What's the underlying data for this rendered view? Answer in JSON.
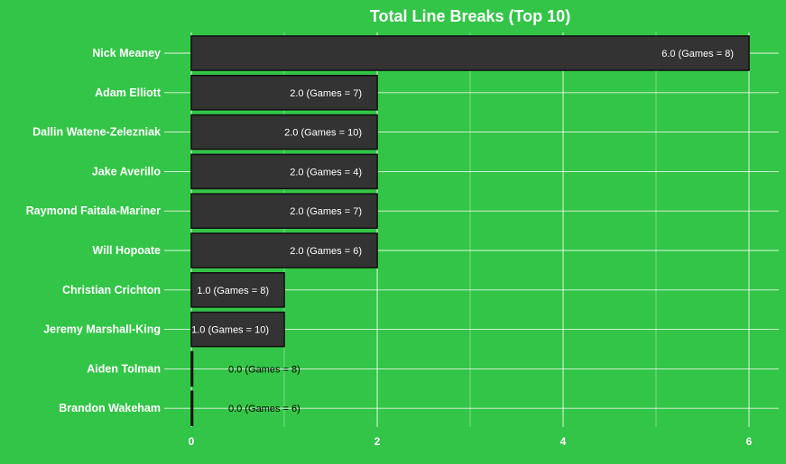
{
  "chart_data": {
    "type": "bar",
    "orientation": "horizontal",
    "title": "Total Line Breaks (Top 10)",
    "xlabel": "",
    "ylabel": "",
    "xlim": [
      0,
      6.3
    ],
    "x_ticks": [
      0,
      2,
      4,
      6
    ],
    "grid": true,
    "categories": [
      "Nick Meaney",
      "Adam Elliott",
      "Dallin Watene-Zelezniak",
      "Jake Averillo",
      "Raymond Faitala-Mariner",
      "Will Hopoate",
      "Christian Crichton",
      "Jeremy Marshall-King",
      "Aiden Tolman",
      "Brandon Wakeham"
    ],
    "values": [
      6.0,
      2.0,
      2.0,
      2.0,
      2.0,
      2.0,
      1.0,
      1.0,
      0.0,
      0.0
    ],
    "data_labels": [
      "6.0 (Games = 8)",
      "2.0 (Games = 7)",
      "2.0 (Games = 10)",
      "2.0 (Games = 4)",
      "2.0 (Games = 7)",
      "2.0 (Games = 6)",
      "1.0 (Games = 8)",
      "1.0 (Games = 10)",
      "0.0 (Games = 8)",
      "0.0 (Games = 6)"
    ],
    "colors": {
      "background": "#33c547",
      "bar_fill": "#333333",
      "bar_stroke": "#111111",
      "grid": "#ffffff",
      "text": "#ffffff",
      "outside_label": "#000000"
    }
  }
}
